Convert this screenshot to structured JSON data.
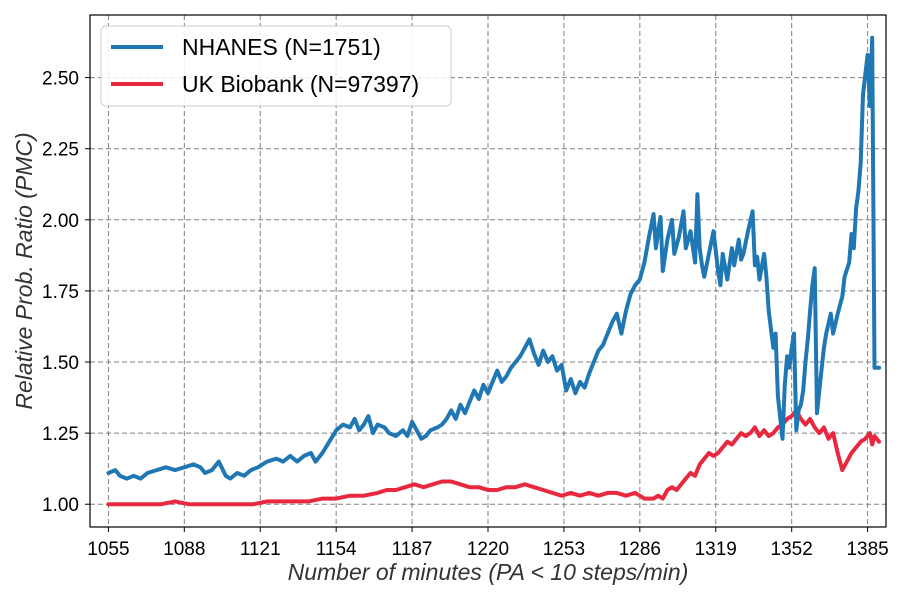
{
  "chart_data": {
    "type": "line",
    "xlabel": "Number of minutes (PA < 10 steps/min)",
    "ylabel": "Relative Prob. Ratio (PMC)",
    "xlim": [
      1047,
      1393
    ],
    "ylim": [
      0.92,
      2.72
    ],
    "xticks": [
      1055,
      1088,
      1121,
      1154,
      1187,
      1220,
      1253,
      1286,
      1319,
      1352,
      1385
    ],
    "yticks": [
      1.0,
      1.25,
      1.5,
      1.75,
      2.0,
      2.25,
      2.5
    ],
    "ytick_labels": [
      "1.00",
      "1.25",
      "1.50",
      "1.75",
      "2.00",
      "2.25",
      "2.50"
    ],
    "grid": true,
    "legend_position": "top-left",
    "series": [
      {
        "name": "NHANES (N=1751)",
        "color": "#1f77b4",
        "points": [
          [
            1055,
            1.11
          ],
          [
            1058,
            1.12
          ],
          [
            1060,
            1.1
          ],
          [
            1063,
            1.09
          ],
          [
            1066,
            1.1
          ],
          [
            1069,
            1.09
          ],
          [
            1072,
            1.11
          ],
          [
            1076,
            1.12
          ],
          [
            1080,
            1.13
          ],
          [
            1084,
            1.12
          ],
          [
            1088,
            1.13
          ],
          [
            1092,
            1.14
          ],
          [
            1095,
            1.13
          ],
          [
            1097,
            1.11
          ],
          [
            1100,
            1.12
          ],
          [
            1103,
            1.15
          ],
          [
            1106,
            1.1
          ],
          [
            1108,
            1.09
          ],
          [
            1111,
            1.11
          ],
          [
            1114,
            1.1
          ],
          [
            1117,
            1.12
          ],
          [
            1120,
            1.13
          ],
          [
            1124,
            1.15
          ],
          [
            1128,
            1.16
          ],
          [
            1131,
            1.15
          ],
          [
            1134,
            1.17
          ],
          [
            1137,
            1.15
          ],
          [
            1140,
            1.17
          ],
          [
            1143,
            1.18
          ],
          [
            1145,
            1.15
          ],
          [
            1148,
            1.18
          ],
          [
            1151,
            1.22
          ],
          [
            1154,
            1.26
          ],
          [
            1157,
            1.28
          ],
          [
            1160,
            1.27
          ],
          [
            1162,
            1.3
          ],
          [
            1164,
            1.26
          ],
          [
            1166,
            1.28
          ],
          [
            1168,
            1.31
          ],
          [
            1170,
            1.25
          ],
          [
            1172,
            1.28
          ],
          [
            1175,
            1.27
          ],
          [
            1177,
            1.25
          ],
          [
            1180,
            1.24
          ],
          [
            1183,
            1.26
          ],
          [
            1185,
            1.24
          ],
          [
            1187,
            1.29
          ],
          [
            1189,
            1.26
          ],
          [
            1191,
            1.23
          ],
          [
            1193,
            1.24
          ],
          [
            1195,
            1.26
          ],
          [
            1198,
            1.27
          ],
          [
            1200,
            1.28
          ],
          [
            1202,
            1.3
          ],
          [
            1204,
            1.33
          ],
          [
            1206,
            1.3
          ],
          [
            1208,
            1.35
          ],
          [
            1210,
            1.32
          ],
          [
            1212,
            1.36
          ],
          [
            1214,
            1.4
          ],
          [
            1216,
            1.37
          ],
          [
            1218,
            1.42
          ],
          [
            1220,
            1.39
          ],
          [
            1222,
            1.43
          ],
          [
            1224,
            1.47
          ],
          [
            1226,
            1.43
          ],
          [
            1228,
            1.45
          ],
          [
            1230,
            1.48
          ],
          [
            1232,
            1.5
          ],
          [
            1234,
            1.52
          ],
          [
            1236,
            1.55
          ],
          [
            1238,
            1.58
          ],
          [
            1240,
            1.53
          ],
          [
            1242,
            1.49
          ],
          [
            1244,
            1.54
          ],
          [
            1246,
            1.5
          ],
          [
            1248,
            1.52
          ],
          [
            1250,
            1.47
          ],
          [
            1252,
            1.49
          ],
          [
            1254,
            1.4
          ],
          [
            1256,
            1.44
          ],
          [
            1258,
            1.39
          ],
          [
            1260,
            1.43
          ],
          [
            1262,
            1.41
          ],
          [
            1264,
            1.46
          ],
          [
            1266,
            1.5
          ],
          [
            1268,
            1.54
          ],
          [
            1270,
            1.56
          ],
          [
            1272,
            1.6
          ],
          [
            1274,
            1.64
          ],
          [
            1276,
            1.67
          ],
          [
            1278,
            1.6
          ],
          [
            1280,
            1.68
          ],
          [
            1282,
            1.74
          ],
          [
            1284,
            1.77
          ],
          [
            1286,
            1.79
          ],
          [
            1288,
            1.85
          ],
          [
            1290,
            1.94
          ],
          [
            1292,
            2.02
          ],
          [
            1293,
            1.9
          ],
          [
            1294,
            1.96
          ],
          [
            1295,
            2.01
          ],
          [
            1296,
            1.82
          ],
          [
            1298,
            1.93
          ],
          [
            1300,
            2.0
          ],
          [
            1301,
            1.88
          ],
          [
            1303,
            1.94
          ],
          [
            1305,
            2.03
          ],
          [
            1306,
            1.9
          ],
          [
            1308,
            1.96
          ],
          [
            1310,
            1.85
          ],
          [
            1311,
            2.09
          ],
          [
            1312,
            1.9
          ],
          [
            1313,
            1.84
          ],
          [
            1314,
            1.8
          ],
          [
            1316,
            1.88
          ],
          [
            1318,
            1.96
          ],
          [
            1320,
            1.82
          ],
          [
            1321,
            1.77
          ],
          [
            1322,
            1.88
          ],
          [
            1324,
            1.79
          ],
          [
            1326,
            1.9
          ],
          [
            1327,
            1.84
          ],
          [
            1329,
            1.93
          ],
          [
            1330,
            1.86
          ],
          [
            1331,
            1.88
          ],
          [
            1333,
            1.96
          ],
          [
            1335,
            2.03
          ],
          [
            1336,
            1.84
          ],
          [
            1337,
            1.87
          ],
          [
            1338,
            1.79
          ],
          [
            1340,
            1.88
          ],
          [
            1341,
            1.8
          ],
          [
            1342,
            1.68
          ],
          [
            1344,
            1.55
          ],
          [
            1345,
            1.6
          ],
          [
            1346,
            1.38
          ],
          [
            1348,
            1.23
          ],
          [
            1349,
            1.42
          ],
          [
            1350,
            1.52
          ],
          [
            1351,
            1.48
          ],
          [
            1352,
            1.55
          ],
          [
            1353,
            1.6
          ],
          [
            1354,
            1.26
          ],
          [
            1355,
            1.33
          ],
          [
            1356,
            1.35
          ],
          [
            1357,
            1.4
          ],
          [
            1358,
            1.5
          ],
          [
            1359,
            1.58
          ],
          [
            1360,
            1.68
          ],
          [
            1361,
            1.77
          ],
          [
            1362,
            1.83
          ],
          [
            1363,
            1.32
          ],
          [
            1364,
            1.4
          ],
          [
            1366,
            1.55
          ],
          [
            1367,
            1.6
          ],
          [
            1369,
            1.67
          ],
          [
            1370,
            1.6
          ],
          [
            1372,
            1.67
          ],
          [
            1374,
            1.73
          ],
          [
            1375,
            1.8
          ],
          [
            1377,
            1.85
          ],
          [
            1378,
            1.95
          ],
          [
            1379,
            1.9
          ],
          [
            1380,
            2.04
          ],
          [
            1381,
            2.1
          ],
          [
            1382,
            2.2
          ],
          [
            1383,
            2.44
          ],
          [
            1384,
            2.51
          ],
          [
            1385,
            2.58
          ],
          [
            1386,
            2.4
          ],
          [
            1387,
            2.64
          ],
          [
            1388,
            1.48
          ],
          [
            1390,
            1.48
          ]
        ]
      },
      {
        "name": "UK Biobank (N=97397)",
        "color": "#e8283f",
        "points": [
          [
            1055,
            1.0
          ],
          [
            1060,
            1.0
          ],
          [
            1066,
            1.0
          ],
          [
            1072,
            1.0
          ],
          [
            1078,
            1.0
          ],
          [
            1084,
            1.01
          ],
          [
            1090,
            1.0
          ],
          [
            1096,
            1.0
          ],
          [
            1100,
            1.0
          ],
          [
            1106,
            1.0
          ],
          [
            1112,
            1.0
          ],
          [
            1118,
            1.0
          ],
          [
            1124,
            1.01
          ],
          [
            1130,
            1.01
          ],
          [
            1136,
            1.01
          ],
          [
            1142,
            1.01
          ],
          [
            1148,
            1.02
          ],
          [
            1154,
            1.02
          ],
          [
            1160,
            1.03
          ],
          [
            1166,
            1.03
          ],
          [
            1172,
            1.04
          ],
          [
            1176,
            1.05
          ],
          [
            1180,
            1.05
          ],
          [
            1184,
            1.06
          ],
          [
            1188,
            1.07
          ],
          [
            1192,
            1.06
          ],
          [
            1196,
            1.07
          ],
          [
            1200,
            1.08
          ],
          [
            1204,
            1.08
          ],
          [
            1208,
            1.07
          ],
          [
            1212,
            1.06
          ],
          [
            1216,
            1.06
          ],
          [
            1220,
            1.05
          ],
          [
            1224,
            1.05
          ],
          [
            1228,
            1.06
          ],
          [
            1232,
            1.06
          ],
          [
            1236,
            1.07
          ],
          [
            1240,
            1.06
          ],
          [
            1244,
            1.05
          ],
          [
            1248,
            1.04
          ],
          [
            1252,
            1.03
          ],
          [
            1256,
            1.04
          ],
          [
            1260,
            1.03
          ],
          [
            1264,
            1.04
          ],
          [
            1268,
            1.03
          ],
          [
            1272,
            1.04
          ],
          [
            1276,
            1.04
          ],
          [
            1280,
            1.03
          ],
          [
            1284,
            1.04
          ],
          [
            1288,
            1.02
          ],
          [
            1292,
            1.02
          ],
          [
            1294,
            1.03
          ],
          [
            1296,
            1.02
          ],
          [
            1298,
            1.05
          ],
          [
            1300,
            1.06
          ],
          [
            1302,
            1.05
          ],
          [
            1304,
            1.07
          ],
          [
            1306,
            1.09
          ],
          [
            1308,
            1.11
          ],
          [
            1310,
            1.1
          ],
          [
            1312,
            1.14
          ],
          [
            1314,
            1.16
          ],
          [
            1316,
            1.18
          ],
          [
            1318,
            1.17
          ],
          [
            1320,
            1.18
          ],
          [
            1322,
            1.2
          ],
          [
            1324,
            1.22
          ],
          [
            1326,
            1.21
          ],
          [
            1328,
            1.23
          ],
          [
            1330,
            1.25
          ],
          [
            1332,
            1.24
          ],
          [
            1334,
            1.25
          ],
          [
            1336,
            1.27
          ],
          [
            1338,
            1.24
          ],
          [
            1340,
            1.26
          ],
          [
            1342,
            1.24
          ],
          [
            1344,
            1.25
          ],
          [
            1346,
            1.27
          ],
          [
            1348,
            1.28
          ],
          [
            1350,
            1.3
          ],
          [
            1352,
            1.31
          ],
          [
            1354,
            1.33
          ],
          [
            1356,
            1.3
          ],
          [
            1358,
            1.28
          ],
          [
            1360,
            1.3
          ],
          [
            1362,
            1.27
          ],
          [
            1364,
            1.25
          ],
          [
            1366,
            1.27
          ],
          [
            1368,
            1.23
          ],
          [
            1370,
            1.25
          ],
          [
            1372,
            1.18
          ],
          [
            1374,
            1.12
          ],
          [
            1376,
            1.15
          ],
          [
            1378,
            1.18
          ],
          [
            1380,
            1.2
          ],
          [
            1382,
            1.22
          ],
          [
            1384,
            1.23
          ],
          [
            1386,
            1.25
          ],
          [
            1387,
            1.21
          ],
          [
            1388,
            1.24
          ],
          [
            1390,
            1.22
          ]
        ]
      }
    ]
  }
}
